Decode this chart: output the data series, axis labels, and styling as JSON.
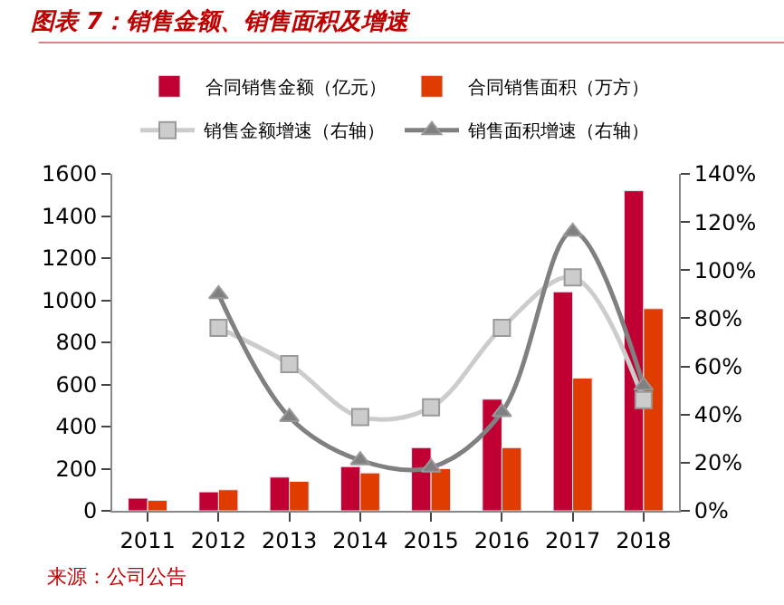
{
  "chart_data": {
    "type": "bar",
    "title": "图表 7：销售金额、销售面积及增速",
    "categories": [
      "2011",
      "2012",
      "2013",
      "2014",
      "2015",
      "2016",
      "2017",
      "2018"
    ],
    "series": [
      {
        "name": "合同销售金额（亿元）",
        "color": "#c00033",
        "values": [
          60,
          90,
          160,
          210,
          300,
          530,
          1040,
          1520
        ]
      },
      {
        "name": "合同销售面积（万方）",
        "color": "#e03c00",
        "values": [
          50,
          100,
          140,
          180,
          200,
          300,
          630,
          960
        ]
      },
      {
        "name": "销售金额增速（右轴）",
        "type": "line",
        "axis": "y2",
        "marker": "square",
        "color": "#cccccc",
        "values": [
          null,
          76,
          61,
          39,
          43,
          76,
          97,
          46
        ]
      },
      {
        "name": "销售面积增速（右轴）",
        "type": "line",
        "axis": "y2",
        "marker": "triangle",
        "color": "#808080",
        "values": [
          null,
          90,
          39,
          21,
          18,
          41,
          116,
          52
        ]
      }
    ],
    "ylim": [
      0,
      1600
    ],
    "yticks": [
      0,
      200,
      400,
      600,
      800,
      1000,
      1200,
      1400,
      1600
    ],
    "y2lim": [
      0,
      140
    ],
    "y2ticks": [
      {
        "value": 0,
        "label": "0%"
      },
      {
        "value": 20,
        "label": "20%"
      },
      {
        "value": 40,
        "label": "40%"
      },
      {
        "value": 60,
        "label": "60%"
      },
      {
        "value": 80,
        "label": "80%"
      },
      {
        "value": 100,
        "label": "100%"
      },
      {
        "value": 120,
        "label": "120%"
      },
      {
        "value": 140,
        "label": "140%"
      }
    ],
    "legend": "top",
    "annotations": [
      "来源：公司公告"
    ]
  }
}
